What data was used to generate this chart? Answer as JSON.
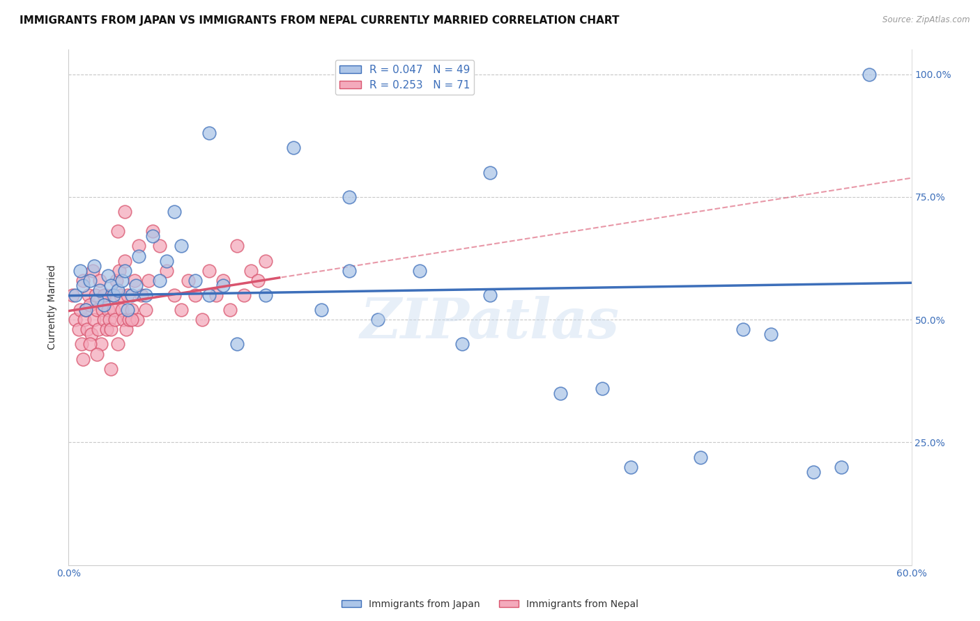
{
  "title": "IMMIGRANTS FROM JAPAN VS IMMIGRANTS FROM NEPAL CURRENTLY MARRIED CORRELATION CHART",
  "source": "Source: ZipAtlas.com",
  "ylabel": "Currently Married",
  "xlim": [
    0.0,
    0.6
  ],
  "ylim": [
    0.0,
    1.05
  ],
  "japan_R": 0.047,
  "japan_N": 49,
  "nepal_R": 0.253,
  "nepal_N": 71,
  "japan_color": "#adc6e8",
  "nepal_color": "#f4aabc",
  "japan_line_color": "#3d6fba",
  "nepal_line_color": "#d9546e",
  "background_color": "#ffffff",
  "grid_color": "#c8c8c8",
  "watermark": "ZIPatlas",
  "japan_x": [
    0.005,
    0.008,
    0.01,
    0.012,
    0.015,
    0.018,
    0.02,
    0.022,
    0.025,
    0.028,
    0.03,
    0.032,
    0.035,
    0.038,
    0.04,
    0.042,
    0.045,
    0.048,
    0.05,
    0.055,
    0.06,
    0.065,
    0.07,
    0.075,
    0.08,
    0.09,
    0.1,
    0.11,
    0.12,
    0.14,
    0.16,
    0.18,
    0.2,
    0.22,
    0.25,
    0.28,
    0.3,
    0.35,
    0.38,
    0.4,
    0.45,
    0.48,
    0.5,
    0.53,
    0.55,
    0.57,
    0.3,
    0.2,
    0.1
  ],
  "japan_y": [
    0.55,
    0.6,
    0.57,
    0.52,
    0.58,
    0.61,
    0.54,
    0.56,
    0.53,
    0.59,
    0.57,
    0.55,
    0.56,
    0.58,
    0.6,
    0.52,
    0.55,
    0.57,
    0.63,
    0.55,
    0.67,
    0.58,
    0.62,
    0.72,
    0.65,
    0.58,
    0.55,
    0.57,
    0.45,
    0.55,
    0.85,
    0.52,
    0.6,
    0.5,
    0.6,
    0.45,
    0.55,
    0.35,
    0.36,
    0.2,
    0.22,
    0.48,
    0.47,
    0.19,
    0.2,
    1.0,
    0.8,
    0.75,
    0.88
  ],
  "nepal_x": [
    0.003,
    0.005,
    0.007,
    0.008,
    0.009,
    0.01,
    0.011,
    0.012,
    0.013,
    0.014,
    0.015,
    0.016,
    0.017,
    0.018,
    0.019,
    0.02,
    0.021,
    0.022,
    0.023,
    0.024,
    0.025,
    0.026,
    0.027,
    0.028,
    0.029,
    0.03,
    0.031,
    0.032,
    0.033,
    0.034,
    0.035,
    0.036,
    0.037,
    0.038,
    0.039,
    0.04,
    0.041,
    0.042,
    0.043,
    0.045,
    0.047,
    0.049,
    0.05,
    0.052,
    0.055,
    0.057,
    0.06,
    0.065,
    0.07,
    0.075,
    0.08,
    0.085,
    0.09,
    0.095,
    0.1,
    0.105,
    0.11,
    0.115,
    0.12,
    0.125,
    0.13,
    0.135,
    0.14,
    0.01,
    0.015,
    0.02,
    0.025,
    0.03,
    0.035,
    0.04,
    0.045
  ],
  "nepal_y": [
    0.55,
    0.5,
    0.48,
    0.52,
    0.45,
    0.58,
    0.5,
    0.52,
    0.48,
    0.55,
    0.53,
    0.47,
    0.6,
    0.5,
    0.55,
    0.52,
    0.48,
    0.58,
    0.45,
    0.52,
    0.5,
    0.55,
    0.48,
    0.52,
    0.5,
    0.48,
    0.55,
    0.52,
    0.5,
    0.58,
    0.45,
    0.6,
    0.55,
    0.52,
    0.5,
    0.62,
    0.48,
    0.55,
    0.5,
    0.52,
    0.58,
    0.5,
    0.65,
    0.55,
    0.52,
    0.58,
    0.68,
    0.65,
    0.6,
    0.55,
    0.52,
    0.58,
    0.55,
    0.5,
    0.6,
    0.55,
    0.58,
    0.52,
    0.65,
    0.55,
    0.6,
    0.58,
    0.62,
    0.42,
    0.45,
    0.43,
    0.55,
    0.4,
    0.68,
    0.72,
    0.5
  ]
}
